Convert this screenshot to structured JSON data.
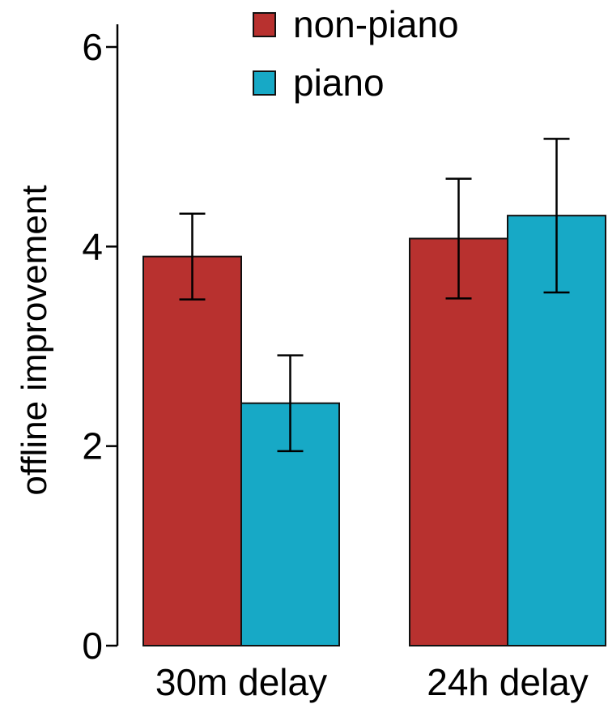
{
  "chart_data": {
    "type": "bar",
    "title": "",
    "xlabel": "",
    "ylabel": "offline improvement",
    "ylim": [
      0,
      6
    ],
    "yticks": [
      0,
      2,
      4,
      6
    ],
    "grid": false,
    "legend_position": "top",
    "categories": [
      "30m delay",
      "24h delay"
    ],
    "series": [
      {
        "name": "non-piano",
        "color": "#b8312f",
        "values": [
          3.9,
          4.08
        ],
        "error": [
          0.43,
          0.6
        ]
      },
      {
        "name": "piano",
        "color": "#17a9c6",
        "values": [
          2.43,
          4.31
        ],
        "error": [
          0.48,
          0.77
        ]
      }
    ]
  }
}
